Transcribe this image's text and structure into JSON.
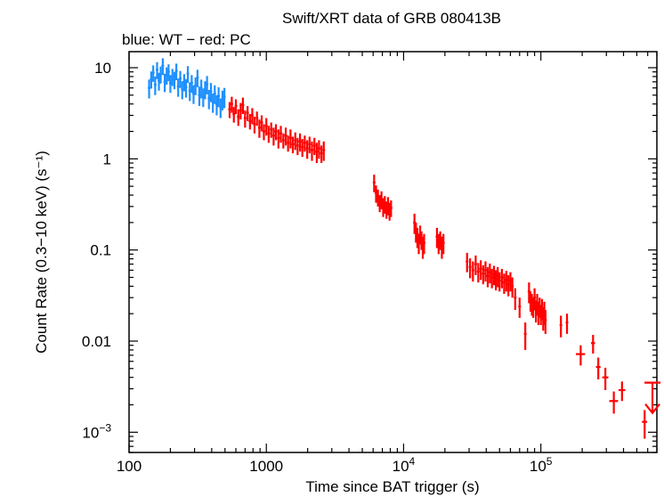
{
  "chart_data": {
    "type": "scatter",
    "title": "Swift/XRT data of GRB 080413B",
    "subtitle": "blue: WT − red: PC",
    "xlabel": "Time since BAT trigger (s)",
    "ylabel": "Count Rate (0.3−10 keV) (s⁻¹)",
    "xscale": "log",
    "yscale": "log",
    "xlim": [
      100,
      700000
    ],
    "ylim": [
      0.0006,
      15
    ],
    "grid": false,
    "x_ticks": [
      {
        "value": 100,
        "label": "100",
        "sup": ""
      },
      {
        "value": 1000,
        "label": "1000",
        "sup": ""
      },
      {
        "value": 10000,
        "label": "10",
        "sup": "4"
      },
      {
        "value": 100000,
        "label": "10",
        "sup": "5"
      }
    ],
    "y_ticks": [
      {
        "value": 10,
        "label": "10",
        "sup": ""
      },
      {
        "value": 1,
        "label": "1",
        "sup": ""
      },
      {
        "value": 0.1,
        "label": "0.1",
        "sup": ""
      },
      {
        "value": 0.01,
        "label": "0.01",
        "sup": ""
      },
      {
        "value": 0.001,
        "label": "10",
        "sup": "−3"
      }
    ],
    "series": [
      {
        "mode": "WT",
        "color": "#1e90ff",
        "points": [
          [
            140,
            6.0,
            1.4
          ],
          [
            145,
            7.5,
            1.6
          ],
          [
            150,
            8.8,
            1.8
          ],
          [
            155,
            6.5,
            1.5
          ],
          [
            160,
            9.5,
            2.0
          ],
          [
            165,
            7.2,
            1.6
          ],
          [
            170,
            8.5,
            1.8
          ],
          [
            176,
            10.5,
            2.2
          ],
          [
            182,
            7.0,
            1.6
          ],
          [
            188,
            8.3,
            1.8
          ],
          [
            194,
            9.0,
            1.9
          ],
          [
            200,
            6.8,
            1.5
          ],
          [
            207,
            8.0,
            1.7
          ],
          [
            214,
            7.4,
            1.6
          ],
          [
            221,
            9.2,
            1.9
          ],
          [
            228,
            6.2,
            1.4
          ],
          [
            236,
            7.6,
            1.6
          ],
          [
            244,
            5.8,
            1.3
          ],
          [
            252,
            7.0,
            1.5
          ],
          [
            260,
            6.1,
            1.4
          ],
          [
            268,
            8.6,
            1.8
          ],
          [
            277,
            5.6,
            1.3
          ],
          [
            286,
            6.8,
            1.5
          ],
          [
            295,
            5.2,
            1.2
          ],
          [
            305,
            6.4,
            1.4
          ],
          [
            315,
            7.8,
            1.7
          ],
          [
            325,
            5.0,
            1.2
          ],
          [
            336,
            6.0,
            1.4
          ],
          [
            347,
            4.8,
            1.1
          ],
          [
            358,
            5.8,
            1.3
          ],
          [
            370,
            6.6,
            1.5
          ],
          [
            382,
            4.6,
            1.1
          ],
          [
            395,
            5.5,
            1.3
          ],
          [
            408,
            4.2,
            1.0
          ],
          [
            421,
            5.2,
            1.2
          ],
          [
            435,
            4.0,
            1.0
          ],
          [
            449,
            4.9,
            1.2
          ],
          [
            464,
            3.7,
            0.9
          ],
          [
            479,
            4.5,
            1.1
          ],
          [
            495,
            4.8,
            1.2
          ]
        ]
      },
      {
        "mode": "PC",
        "color": "#ff0000",
        "points": [
          [
            540,
            3.5,
            0.7
          ],
          [
            560,
            4.0,
            0.8
          ],
          [
            580,
            3.1,
            0.6
          ],
          [
            600,
            3.8,
            0.7
          ],
          [
            625,
            2.9,
            0.6
          ],
          [
            650,
            3.4,
            0.7
          ],
          [
            675,
            3.9,
            0.8
          ],
          [
            700,
            2.8,
            0.6
          ],
          [
            730,
            3.2,
            0.6
          ],
          [
            760,
            2.6,
            0.5
          ],
          [
            790,
            3.0,
            0.6
          ],
          [
            820,
            2.4,
            0.5
          ],
          [
            855,
            2.8,
            0.5
          ],
          [
            890,
            2.2,
            0.5
          ],
          [
            925,
            2.5,
            0.5
          ],
          [
            960,
            2.0,
            0.4
          ],
          [
            1000,
            2.3,
            0.5
          ],
          [
            1040,
            1.9,
            0.4
          ],
          [
            1085,
            2.1,
            0.4
          ],
          [
            1130,
            1.8,
            0.4
          ],
          [
            1175,
            2.0,
            0.4
          ],
          [
            1225,
            1.7,
            0.4
          ],
          [
            1275,
            1.9,
            0.4
          ],
          [
            1330,
            1.6,
            0.3
          ],
          [
            1385,
            1.8,
            0.4
          ],
          [
            1440,
            1.5,
            0.3
          ],
          [
            1500,
            1.7,
            0.4
          ],
          [
            1560,
            1.45,
            0.3
          ],
          [
            1625,
            1.6,
            0.35
          ],
          [
            1690,
            1.4,
            0.3
          ],
          [
            1760,
            1.55,
            0.35
          ],
          [
            1830,
            1.35,
            0.3
          ],
          [
            1905,
            1.5,
            0.3
          ],
          [
            1985,
            1.3,
            0.3
          ],
          [
            2065,
            1.45,
            0.3
          ],
          [
            2150,
            1.25,
            0.3
          ],
          [
            2240,
            1.4,
            0.3
          ],
          [
            2330,
            1.2,
            0.3
          ],
          [
            2420,
            1.3,
            0.3
          ],
          [
            2520,
            1.15,
            0.25
          ],
          [
            2620,
            1.25,
            0.3
          ],
          [
            6100,
            0.55,
            0.12
          ],
          [
            6300,
            0.42,
            0.09
          ],
          [
            6500,
            0.38,
            0.08
          ],
          [
            6700,
            0.33,
            0.07
          ],
          [
            6900,
            0.36,
            0.08
          ],
          [
            7100,
            0.3,
            0.07
          ],
          [
            7300,
            0.32,
            0.07
          ],
          [
            7500,
            0.28,
            0.06
          ],
          [
            7700,
            0.31,
            0.07
          ],
          [
            7900,
            0.27,
            0.06
          ],
          [
            8100,
            0.29,
            0.06
          ],
          [
            12000,
            0.2,
            0.05
          ],
          [
            12300,
            0.16,
            0.04
          ],
          [
            12600,
            0.14,
            0.035
          ],
          [
            12900,
            0.12,
            0.03
          ],
          [
            13200,
            0.15,
            0.035
          ],
          [
            13500,
            0.13,
            0.03
          ],
          [
            13800,
            0.11,
            0.03
          ],
          [
            14100,
            0.12,
            0.03
          ],
          [
            17500,
            0.14,
            0.035
          ],
          [
            18000,
            0.12,
            0.03
          ],
          [
            18500,
            0.13,
            0.03
          ],
          [
            19000,
            0.11,
            0.03
          ],
          [
            19500,
            0.12,
            0.03
          ],
          [
            29000,
            0.075,
            0.018
          ],
          [
            30500,
            0.065,
            0.016
          ],
          [
            32000,
            0.06,
            0.015
          ],
          [
            33500,
            0.07,
            0.017
          ],
          [
            35000,
            0.058,
            0.014
          ],
          [
            36500,
            0.062,
            0.015
          ],
          [
            38000,
            0.055,
            0.013
          ],
          [
            39500,
            0.06,
            0.015
          ],
          [
            41000,
            0.052,
            0.013
          ],
          [
            42500,
            0.057,
            0.014
          ],
          [
            44000,
            0.05,
            0.012
          ],
          [
            45500,
            0.054,
            0.013
          ],
          [
            47000,
            0.048,
            0.012
          ],
          [
            48500,
            0.052,
            0.013
          ],
          [
            50000,
            0.046,
            0.011
          ],
          [
            52000,
            0.05,
            0.012
          ],
          [
            54000,
            0.044,
            0.011
          ],
          [
            56000,
            0.047,
            0.012
          ],
          [
            58000,
            0.042,
            0.011
          ],
          [
            60000,
            0.046,
            0.011
          ],
          [
            62000,
            0.04,
            0.01
          ],
          [
            65000,
            0.03,
            0.008
          ],
          [
            70000,
            0.024,
            0.006
          ],
          [
            77000,
            0.012,
            0.004
          ],
          [
            82000,
            0.035,
            0.009
          ],
          [
            84000,
            0.028,
            0.007
          ],
          [
            86000,
            0.026,
            0.007
          ],
          [
            88000,
            0.024,
            0.006
          ],
          [
            90000,
            0.03,
            0.008
          ],
          [
            92000,
            0.022,
            0.006
          ],
          [
            94000,
            0.026,
            0.007
          ],
          [
            96000,
            0.021,
            0.006
          ],
          [
            98000,
            0.024,
            0.006
          ],
          [
            100000,
            0.02,
            0.005
          ],
          [
            102000,
            0.023,
            0.006
          ],
          [
            104000,
            0.018,
            0.005
          ],
          [
            106000,
            0.021,
            0.006
          ],
          [
            108000,
            0.017,
            0.005
          ],
          [
            140000,
            0.015,
            0.004
          ],
          [
            155000,
            0.016,
            0.004
          ],
          [
            195000,
            0.0072,
            0.0018
          ],
          [
            240000,
            0.0095,
            0.0022
          ],
          [
            262000,
            0.0052,
            0.0014
          ],
          [
            295000,
            0.004,
            0.0011
          ],
          [
            340000,
            0.0022,
            0.0006
          ],
          [
            390000,
            0.0029,
            0.0007
          ],
          [
            570000,
            0.0013,
            0.00045
          ]
        ],
        "x_halfwidths": {
          "195000": 15000,
          "340000": 25000,
          "390000": 22000,
          "570000": 25000,
          "295000": 15000,
          "262000": 10000,
          "240000": 8000
        }
      }
    ],
    "upper_limit": {
      "x": 650000,
      "y": 0.0035,
      "color": "#ff0000"
    }
  }
}
